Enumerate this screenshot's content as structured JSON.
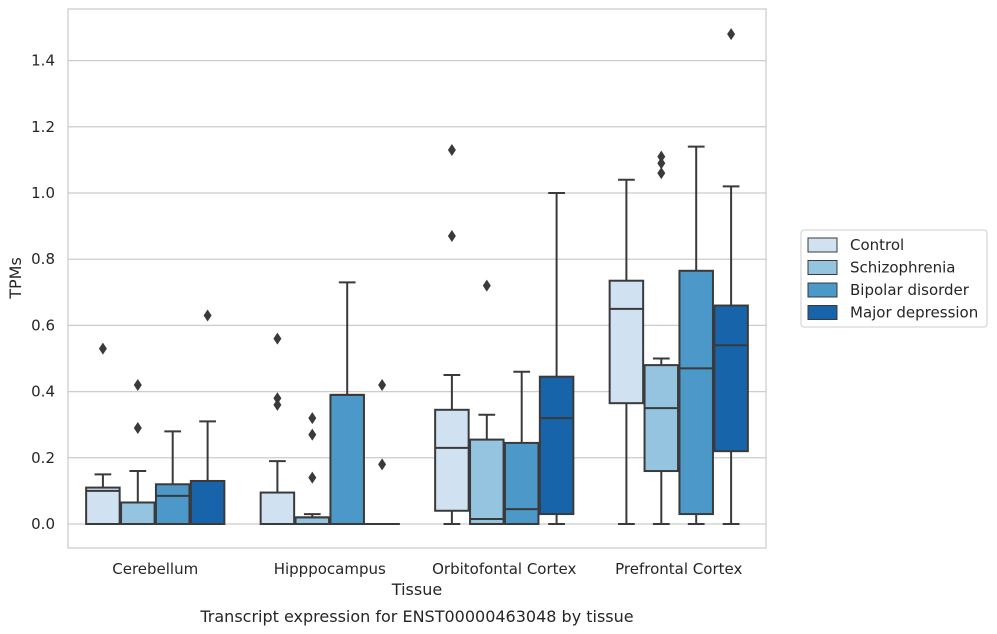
{
  "chart_data": {
    "type": "box",
    "title": "",
    "caption": "Transcript expression for ENST00000463048 by tissue",
    "xlabel": "Tissue",
    "ylabel": "TPMs",
    "ylim": [
      -0.07,
      1.56
    ],
    "yticks": [
      "0.0",
      "0.2",
      "0.4",
      "0.6",
      "0.8",
      "1.0",
      "1.2",
      "1.4"
    ],
    "grid": "horizontal",
    "legend_position": "right",
    "categories": [
      "Cerebellum",
      "Hipppocampus",
      "Orbitofontal Cortex",
      "Prefrontal Cortex"
    ],
    "series": [
      {
        "name": "Control",
        "color": "#d0e1f2",
        "boxes": [
          {
            "whislo": 0.0,
            "q1": 0.0,
            "med": 0.1,
            "q3": 0.11,
            "whishi": 0.15,
            "fliers": [
              0.53
            ]
          },
          {
            "whislo": 0.0,
            "q1": 0.0,
            "med": 0.0,
            "q3": 0.095,
            "whishi": 0.19,
            "fliers": [
              0.56,
              0.38,
              0.36
            ]
          },
          {
            "whislo": 0.0,
            "q1": 0.04,
            "med": 0.23,
            "q3": 0.345,
            "whishi": 0.45,
            "fliers": [
              1.13,
              0.87
            ]
          },
          {
            "whislo": 0.0,
            "q1": 0.365,
            "med": 0.65,
            "q3": 0.735,
            "whishi": 1.04,
            "fliers": []
          }
        ]
      },
      {
        "name": "Schizophrenia",
        "color": "#94c4df",
        "boxes": [
          {
            "whislo": 0.0,
            "q1": 0.0,
            "med": 0.065,
            "q3": 0.065,
            "whishi": 0.16,
            "fliers": [
              0.42,
              0.29
            ]
          },
          {
            "whislo": 0.0,
            "q1": 0.0,
            "med": 0.02,
            "q3": 0.02,
            "whishi": 0.03,
            "fliers": [
              0.32,
              0.27,
              0.14
            ]
          },
          {
            "whislo": 0.0,
            "q1": 0.0,
            "med": 0.015,
            "q3": 0.255,
            "whishi": 0.33,
            "fliers": [
              0.72
            ]
          },
          {
            "whislo": 0.0,
            "q1": 0.16,
            "med": 0.35,
            "q3": 0.48,
            "whishi": 0.5,
            "fliers": [
              1.11,
              1.09,
              1.06
            ]
          }
        ]
      },
      {
        "name": "Bipolar disorder",
        "color": "#4b98c9",
        "boxes": [
          {
            "whislo": 0.0,
            "q1": 0.0,
            "med": 0.085,
            "q3": 0.12,
            "whishi": 0.28,
            "fliers": []
          },
          {
            "whislo": 0.0,
            "q1": 0.0,
            "med": 0.39,
            "q3": 0.39,
            "whishi": 0.73,
            "fliers": []
          },
          {
            "whislo": 0.0,
            "q1": 0.0,
            "med": 0.045,
            "q3": 0.245,
            "whishi": 0.46,
            "fliers": []
          },
          {
            "whislo": 0.0,
            "q1": 0.03,
            "med": 0.47,
            "q3": 0.765,
            "whishi": 1.14,
            "fliers": []
          }
        ]
      },
      {
        "name": "Major depression",
        "color": "#1764ab",
        "boxes": [
          {
            "whislo": 0.0,
            "q1": 0.0,
            "med": 0.13,
            "q3": 0.13,
            "whishi": 0.31,
            "fliers": [
              0.63
            ]
          },
          {
            "whislo": 0.0,
            "q1": 0.0,
            "med": 0.0,
            "q3": 0.0,
            "whishi": 0.0,
            "fliers": [
              0.42,
              0.18
            ]
          },
          {
            "whislo": 0.0,
            "q1": 0.03,
            "med": 0.32,
            "q3": 0.445,
            "whishi": 1.0,
            "fliers": []
          },
          {
            "whislo": 0.0,
            "q1": 0.22,
            "med": 0.54,
            "q3": 0.66,
            "whishi": 1.02,
            "fliers": [
              1.48
            ]
          }
        ]
      }
    ]
  }
}
